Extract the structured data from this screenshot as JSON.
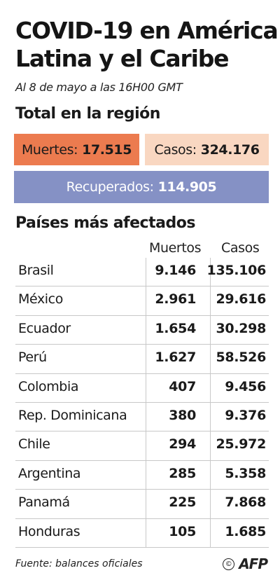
{
  "title_line1": "COVID-19 en América",
  "title_line2": "Latina y el Caribe",
  "subtitle": "Al 8 de mayo a las 16H00 GMT",
  "region_heading": "Total en la región",
  "totals": {
    "deaths_label": "Muertes:",
    "deaths_value": "17.515",
    "cases_label": "Casos:",
    "cases_value": "324.176",
    "recovered_label": "Recuperados:",
    "recovered_value": "114.905"
  },
  "countries_heading": "Países más afectados",
  "table": {
    "col_deaths": "Muertos",
    "col_cases": "Casos",
    "rows": [
      {
        "country": "Brasil",
        "deaths": "9.146",
        "cases": "135.106"
      },
      {
        "country": "México",
        "deaths": "2.961",
        "cases": "29.616"
      },
      {
        "country": "Ecuador",
        "deaths": "1.654",
        "cases": "30.298"
      },
      {
        "country": "Perú",
        "deaths": "1.627",
        "cases": "58.526"
      },
      {
        "country": "Colombia",
        "deaths": "407",
        "cases": "9.456"
      },
      {
        "country": "Rep. Dominicana",
        "deaths": "380",
        "cases": "9.376"
      },
      {
        "country": "Chile",
        "deaths": "294",
        "cases": "25.972"
      },
      {
        "country": "Argentina",
        "deaths": "285",
        "cases": "5.358"
      },
      {
        "country": "Panamá",
        "deaths": "225",
        "cases": "7.868"
      },
      {
        "country": "Honduras",
        "deaths": "105",
        "cases": "1.685"
      }
    ]
  },
  "source": "Fuente: balances oficiales",
  "credit": {
    "copyright": "©",
    "logo": "AFP"
  },
  "colors": {
    "deaths_box": "#ec7b4f",
    "cases_box": "#f9d7c1",
    "recovered_box": "#8591c5"
  }
}
